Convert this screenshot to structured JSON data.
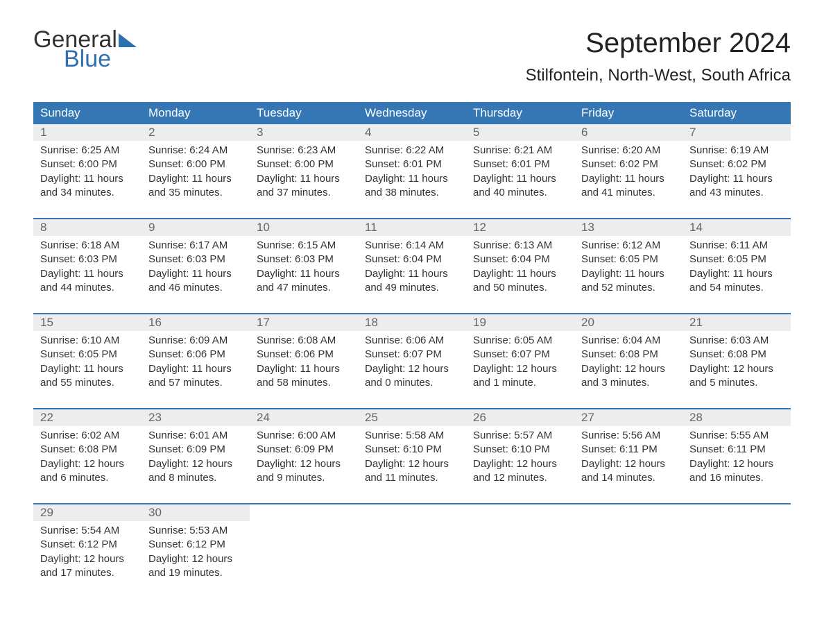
{
  "brand": {
    "word1": "General",
    "word2": "Blue",
    "accent_color": "#2f6fb0"
  },
  "header": {
    "month_title": "September 2024",
    "location": "Stilfontein, North-West, South Africa"
  },
  "styling": {
    "header_bg": "#3577b5",
    "header_text": "#ffffff",
    "daynum_bg": "#ededed",
    "daynum_text": "#666666",
    "body_text": "#333333",
    "week_sep_color": "#3577b5",
    "page_bg": "#ffffff",
    "title_fontsize": 40,
    "location_fontsize": 24,
    "th_fontsize": 17,
    "cell_fontsize": 15
  },
  "calendar": {
    "type": "table",
    "columns": [
      "Sunday",
      "Monday",
      "Tuesday",
      "Wednesday",
      "Thursday",
      "Friday",
      "Saturday"
    ],
    "weeks": [
      [
        {
          "n": "1",
          "sr": "Sunrise: 6:25 AM",
          "ss": "Sunset: 6:00 PM",
          "d1": "Daylight: 11 hours",
          "d2": "and 34 minutes."
        },
        {
          "n": "2",
          "sr": "Sunrise: 6:24 AM",
          "ss": "Sunset: 6:00 PM",
          "d1": "Daylight: 11 hours",
          "d2": "and 35 minutes."
        },
        {
          "n": "3",
          "sr": "Sunrise: 6:23 AM",
          "ss": "Sunset: 6:00 PM",
          "d1": "Daylight: 11 hours",
          "d2": "and 37 minutes."
        },
        {
          "n": "4",
          "sr": "Sunrise: 6:22 AM",
          "ss": "Sunset: 6:01 PM",
          "d1": "Daylight: 11 hours",
          "d2": "and 38 minutes."
        },
        {
          "n": "5",
          "sr": "Sunrise: 6:21 AM",
          "ss": "Sunset: 6:01 PM",
          "d1": "Daylight: 11 hours",
          "d2": "and 40 minutes."
        },
        {
          "n": "6",
          "sr": "Sunrise: 6:20 AM",
          "ss": "Sunset: 6:02 PM",
          "d1": "Daylight: 11 hours",
          "d2": "and 41 minutes."
        },
        {
          "n": "7",
          "sr": "Sunrise: 6:19 AM",
          "ss": "Sunset: 6:02 PM",
          "d1": "Daylight: 11 hours",
          "d2": "and 43 minutes."
        }
      ],
      [
        {
          "n": "8",
          "sr": "Sunrise: 6:18 AM",
          "ss": "Sunset: 6:03 PM",
          "d1": "Daylight: 11 hours",
          "d2": "and 44 minutes."
        },
        {
          "n": "9",
          "sr": "Sunrise: 6:17 AM",
          "ss": "Sunset: 6:03 PM",
          "d1": "Daylight: 11 hours",
          "d2": "and 46 minutes."
        },
        {
          "n": "10",
          "sr": "Sunrise: 6:15 AM",
          "ss": "Sunset: 6:03 PM",
          "d1": "Daylight: 11 hours",
          "d2": "and 47 minutes."
        },
        {
          "n": "11",
          "sr": "Sunrise: 6:14 AM",
          "ss": "Sunset: 6:04 PM",
          "d1": "Daylight: 11 hours",
          "d2": "and 49 minutes."
        },
        {
          "n": "12",
          "sr": "Sunrise: 6:13 AM",
          "ss": "Sunset: 6:04 PM",
          "d1": "Daylight: 11 hours",
          "d2": "and 50 minutes."
        },
        {
          "n": "13",
          "sr": "Sunrise: 6:12 AM",
          "ss": "Sunset: 6:05 PM",
          "d1": "Daylight: 11 hours",
          "d2": "and 52 minutes."
        },
        {
          "n": "14",
          "sr": "Sunrise: 6:11 AM",
          "ss": "Sunset: 6:05 PM",
          "d1": "Daylight: 11 hours",
          "d2": "and 54 minutes."
        }
      ],
      [
        {
          "n": "15",
          "sr": "Sunrise: 6:10 AM",
          "ss": "Sunset: 6:05 PM",
          "d1": "Daylight: 11 hours",
          "d2": "and 55 minutes."
        },
        {
          "n": "16",
          "sr": "Sunrise: 6:09 AM",
          "ss": "Sunset: 6:06 PM",
          "d1": "Daylight: 11 hours",
          "d2": "and 57 minutes."
        },
        {
          "n": "17",
          "sr": "Sunrise: 6:08 AM",
          "ss": "Sunset: 6:06 PM",
          "d1": "Daylight: 11 hours",
          "d2": "and 58 minutes."
        },
        {
          "n": "18",
          "sr": "Sunrise: 6:06 AM",
          "ss": "Sunset: 6:07 PM",
          "d1": "Daylight: 12 hours",
          "d2": "and 0 minutes."
        },
        {
          "n": "19",
          "sr": "Sunrise: 6:05 AM",
          "ss": "Sunset: 6:07 PM",
          "d1": "Daylight: 12 hours",
          "d2": "and 1 minute."
        },
        {
          "n": "20",
          "sr": "Sunrise: 6:04 AM",
          "ss": "Sunset: 6:08 PM",
          "d1": "Daylight: 12 hours",
          "d2": "and 3 minutes."
        },
        {
          "n": "21",
          "sr": "Sunrise: 6:03 AM",
          "ss": "Sunset: 6:08 PM",
          "d1": "Daylight: 12 hours",
          "d2": "and 5 minutes."
        }
      ],
      [
        {
          "n": "22",
          "sr": "Sunrise: 6:02 AM",
          "ss": "Sunset: 6:08 PM",
          "d1": "Daylight: 12 hours",
          "d2": "and 6 minutes."
        },
        {
          "n": "23",
          "sr": "Sunrise: 6:01 AM",
          "ss": "Sunset: 6:09 PM",
          "d1": "Daylight: 12 hours",
          "d2": "and 8 minutes."
        },
        {
          "n": "24",
          "sr": "Sunrise: 6:00 AM",
          "ss": "Sunset: 6:09 PM",
          "d1": "Daylight: 12 hours",
          "d2": "and 9 minutes."
        },
        {
          "n": "25",
          "sr": "Sunrise: 5:58 AM",
          "ss": "Sunset: 6:10 PM",
          "d1": "Daylight: 12 hours",
          "d2": "and 11 minutes."
        },
        {
          "n": "26",
          "sr": "Sunrise: 5:57 AM",
          "ss": "Sunset: 6:10 PM",
          "d1": "Daylight: 12 hours",
          "d2": "and 12 minutes."
        },
        {
          "n": "27",
          "sr": "Sunrise: 5:56 AM",
          "ss": "Sunset: 6:11 PM",
          "d1": "Daylight: 12 hours",
          "d2": "and 14 minutes."
        },
        {
          "n": "28",
          "sr": "Sunrise: 5:55 AM",
          "ss": "Sunset: 6:11 PM",
          "d1": "Daylight: 12 hours",
          "d2": "and 16 minutes."
        }
      ],
      [
        {
          "n": "29",
          "sr": "Sunrise: 5:54 AM",
          "ss": "Sunset: 6:12 PM",
          "d1": "Daylight: 12 hours",
          "d2": "and 17 minutes."
        },
        {
          "n": "30",
          "sr": "Sunrise: 5:53 AM",
          "ss": "Sunset: 6:12 PM",
          "d1": "Daylight: 12 hours",
          "d2": "and 19 minutes."
        },
        null,
        null,
        null,
        null,
        null
      ]
    ]
  }
}
